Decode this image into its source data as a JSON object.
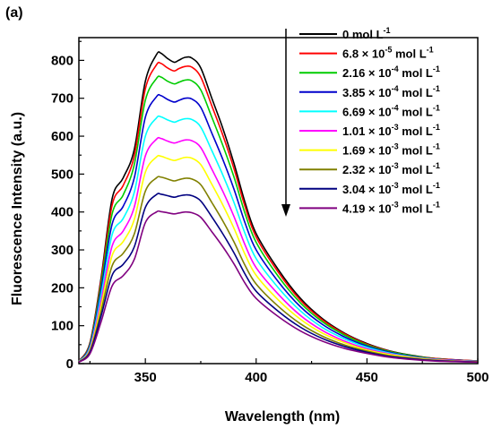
{
  "panel_label": "(a)",
  "chart_data": {
    "type": "line",
    "title": "",
    "xlabel": "Wavelength (nm)",
    "ylabel": "Fluorescence Intensity (a.u.)",
    "xlim": [
      320,
      500
    ],
    "ylim": [
      0,
      860
    ],
    "x_ticks": [
      350,
      400,
      450,
      500
    ],
    "y_ticks": [
      0,
      100,
      200,
      300,
      400,
      500,
      600,
      700,
      800
    ],
    "grid": false,
    "legend_position": "top-right",
    "legend_arrow": "down",
    "x": [
      320,
      325,
      330,
      335,
      340,
      345,
      350,
      355,
      357,
      360,
      363,
      365,
      368,
      371,
      375,
      380,
      385,
      390,
      395,
      400,
      410,
      420,
      430,
      440,
      450,
      460,
      470,
      480,
      490,
      500
    ],
    "series": [
      {
        "name": "0 mol L",
        "sup": "-1",
        "color": "#000000",
        "values": [
          7,
          55,
          225,
          435,
          490,
          565,
          745,
          815,
          819,
          805,
          795,
          800,
          808,
          806,
          780,
          700,
          620,
          528,
          425,
          343,
          248,
          172,
          118,
          80,
          53,
          34,
          22,
          14,
          10,
          7
        ]
      },
      {
        "name": "6.8  × 10",
        "exp": "-5",
        "unit": " mol L",
        "sup": "-1",
        "color": "#ff0000",
        "values": [
          7,
          53,
          218,
          418,
          470,
          548,
          725,
          788,
          792,
          780,
          772,
          778,
          784,
          782,
          756,
          680,
          602,
          514,
          414,
          334,
          241,
          167,
          115,
          78,
          51,
          33,
          21,
          14,
          10,
          7
        ]
      },
      {
        "name": "2.16 × 10",
        "exp": "-4",
        "unit": " mol L",
        "sup": "-1",
        "color": "#00cc00",
        "values": [
          6,
          50,
          208,
          395,
          445,
          525,
          695,
          752,
          756,
          745,
          738,
          742,
          748,
          746,
          722,
          650,
          575,
          492,
          396,
          320,
          230,
          160,
          110,
          75,
          49,
          32,
          21,
          13,
          9,
          6
        ]
      },
      {
        "name": "3.85 × 10",
        "exp": "-4",
        "unit": " mol L",
        "sup": "-1",
        "color": "#0000cc",
        "values": [
          6,
          47,
          195,
          368,
          415,
          490,
          650,
          704,
          707,
          697,
          690,
          694,
          700,
          698,
          676,
          608,
          538,
          460,
          371,
          300,
          216,
          150,
          103,
          70,
          46,
          30,
          19,
          12,
          9,
          6
        ]
      },
      {
        "name": "6.69 × 10",
        "exp": "-4",
        "unit": " mol L",
        "sup": "-1",
        "color": "#00ffff",
        "values": [
          6,
          43,
          180,
          340,
          383,
          452,
          600,
          648,
          651,
          643,
          637,
          641,
          646,
          644,
          624,
          562,
          497,
          425,
          343,
          277,
          200,
          139,
          95,
          65,
          43,
          28,
          18,
          12,
          8,
          6
        ]
      },
      {
        "name": "1.01 × 10",
        "exp": "-3",
        "unit": " mol L",
        "sup": "-1",
        "color": "#ff00ff",
        "values": [
          5,
          39,
          165,
          310,
          350,
          413,
          548,
          592,
          594,
          587,
          582,
          585,
          590,
          588,
          570,
          513,
          454,
          388,
          313,
          253,
          183,
          127,
          87,
          59,
          39,
          26,
          17,
          11,
          8,
          5
        ]
      },
      {
        "name": "1.69 × 10",
        "exp": "-3",
        "unit": " mol L",
        "sup": "-1",
        "color": "#ffff00",
        "values": [
          5,
          36,
          152,
          285,
          322,
          380,
          505,
          545,
          547,
          541,
          536,
          539,
          544,
          542,
          525,
          473,
          418,
          357,
          288,
          233,
          168,
          117,
          80,
          55,
          36,
          24,
          16,
          10,
          7,
          5
        ]
      },
      {
        "name": "2.32 × 10",
        "exp": "-3",
        "unit": " mol L",
        "sup": "-1",
        "color": "#808000",
        "values": [
          5,
          33,
          138,
          258,
          291,
          342,
          455,
          490,
          492,
          487,
          482,
          485,
          489,
          487,
          472,
          425,
          376,
          321,
          259,
          210,
          151,
          105,
          72,
          49,
          33,
          21,
          14,
          9,
          6,
          5
        ]
      },
      {
        "name": "3.04 × 10",
        "exp": "-3",
        "unit": " mol L",
        "sup": "-1",
        "color": "#000080",
        "values": [
          4,
          30,
          125,
          233,
          262,
          308,
          412,
          446,
          447,
          443,
          439,
          442,
          445,
          443,
          429,
          387,
          342,
          292,
          236,
          191,
          138,
          96,
          66,
          45,
          30,
          19,
          13,
          8,
          6,
          4
        ]
      },
      {
        "name": "4.19 × 10",
        "exp": "-3",
        "unit": " mol L",
        "sup": "-1",
        "color": "#800080",
        "values": [
          4,
          26,
          110,
          205,
          232,
          275,
          372,
          400,
          401,
          398,
          395,
          397,
          400,
          398,
          386,
          348,
          308,
          263,
          212,
          172,
          124,
          86,
          59,
          40,
          27,
          17,
          11,
          7,
          5,
          4
        ]
      }
    ]
  }
}
